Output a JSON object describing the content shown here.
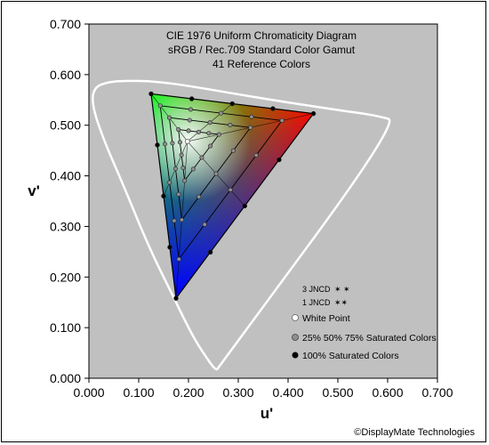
{
  "chart_data": {
    "type": "scatter",
    "title_lines": [
      "CIE 1976 Uniform Chromaticity Diagram",
      "sRGB / Rec.709 Standard Color Gamut",
      "41 Reference Colors"
    ],
    "xlabel": "u'",
    "ylabel": "v'",
    "xlim": [
      0,
      0.7
    ],
    "ylim": [
      0,
      0.7
    ],
    "x_ticks": [
      "0.000",
      "0.100",
      "0.200",
      "0.300",
      "0.400",
      "0.500",
      "0.600",
      "0.700"
    ],
    "y_ticks": [
      "0.000",
      "0.100",
      "0.200",
      "0.300",
      "0.400",
      "0.500",
      "0.600",
      "0.700"
    ],
    "grid": false,
    "plot_background": "#c0c0c0",
    "primaries": {
      "red": [
        0.451,
        0.523
      ],
      "green": [
        0.125,
        0.562
      ],
      "blue": [
        0.175,
        0.158
      ]
    },
    "white_point": [
      0.198,
      0.468
    ],
    "saturation_levels": [
      0.25,
      0.5,
      0.75,
      1.0
    ],
    "spectral_locus": [
      [
        0.257,
        0.017
      ],
      [
        0.253,
        0.018
      ],
      [
        0.24,
        0.035
      ],
      [
        0.21,
        0.08
      ],
      [
        0.17,
        0.16
      ],
      [
        0.12,
        0.26
      ],
      [
        0.07,
        0.38
      ],
      [
        0.03,
        0.47
      ],
      [
        0.006,
        0.54
      ],
      [
        0.01,
        0.575
      ],
      [
        0.04,
        0.586
      ],
      [
        0.08,
        0.588
      ],
      [
        0.13,
        0.587
      ],
      [
        0.2,
        0.578
      ],
      [
        0.3,
        0.561
      ],
      [
        0.4,
        0.545
      ],
      [
        0.5,
        0.53
      ],
      [
        0.58,
        0.519
      ],
      [
        0.623,
        0.506
      ],
      [
        0.257,
        0.017
      ]
    ],
    "legend": {
      "jncd_3": "3 JNCD",
      "jncd_1": "1 JNCD",
      "white_point": "White Point",
      "partial": "25% 50% 75% Saturated Colors",
      "full": "100% Saturated Colors",
      "placement": "bottom-right"
    },
    "colors": {
      "locus": "#ffffff",
      "marker_full": "#000000",
      "marker_partial": "#909090",
      "marker_white": "#ffffff",
      "edge_lines": "#000000"
    }
  },
  "credit": "©DisplayMate Technologies"
}
